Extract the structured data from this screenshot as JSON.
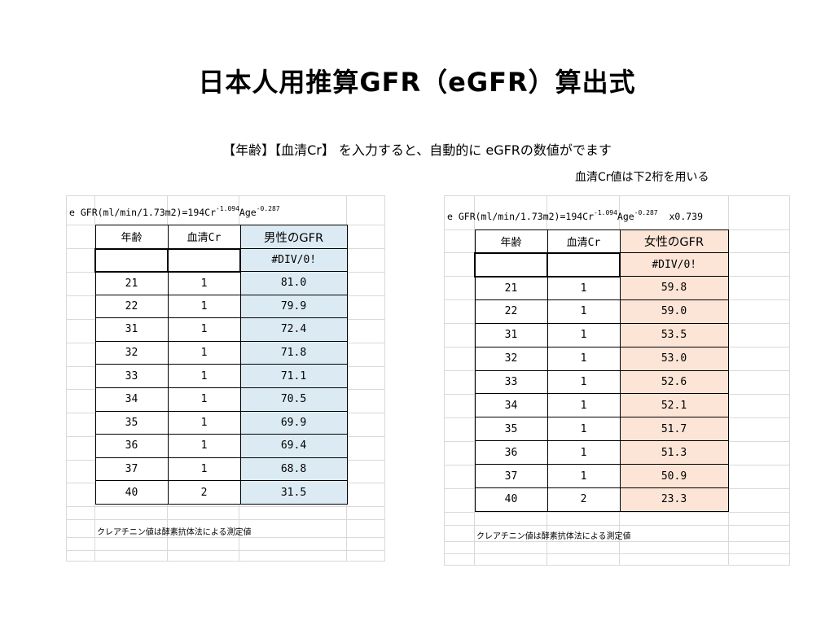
{
  "title": "日本人用推算GFR（eGFR）算出式",
  "subtitle": "【年齢】【血清Cr】 を入力すると、自動的に eGFRの数値がでます",
  "note": "血清Cr値は下2桁を用いる",
  "male": {
    "formula_base": "e GFR(ml/min/1.73m2)=194Cr",
    "formula_exp1": "-1.094",
    "formula_age": "Age",
    "formula_exp2": "-0.287",
    "formula_suffix": "",
    "headers": {
      "age": "年齢",
      "cr": "血清Cr",
      "gfr": "男性のGFR"
    },
    "input_result": "#DIV/0!",
    "rows": [
      {
        "age": "21",
        "cr": "1",
        "gfr": "81.0"
      },
      {
        "age": "22",
        "cr": "1",
        "gfr": "79.9"
      },
      {
        "age": "31",
        "cr": "1",
        "gfr": "72.4"
      },
      {
        "age": "32",
        "cr": "1",
        "gfr": "71.8"
      },
      {
        "age": "33",
        "cr": "1",
        "gfr": "71.1"
      },
      {
        "age": "34",
        "cr": "1",
        "gfr": "70.5"
      },
      {
        "age": "35",
        "cr": "1",
        "gfr": "69.9"
      },
      {
        "age": "36",
        "cr": "1",
        "gfr": "69.4"
      },
      {
        "age": "37",
        "cr": "1",
        "gfr": "68.8"
      },
      {
        "age": "40",
        "cr": "2",
        "gfr": "31.5"
      }
    ],
    "footnote": "クレアチニン値は酵素抗体法による測定値"
  },
  "female": {
    "formula_base": "e GFR(ml/min/1.73m2)=194Cr",
    "formula_exp1": "-1.094",
    "formula_age": "Age",
    "formula_exp2": "-0.287",
    "formula_suffix": "x0.739",
    "headers": {
      "age": "年齢",
      "cr": "血清Cr",
      "gfr": "女性のGFR"
    },
    "input_result": "#DIV/0!",
    "rows": [
      {
        "age": "21",
        "cr": "1",
        "gfr": "59.8"
      },
      {
        "age": "22",
        "cr": "1",
        "gfr": "59.0"
      },
      {
        "age": "31",
        "cr": "1",
        "gfr": "53.5"
      },
      {
        "age": "32",
        "cr": "1",
        "gfr": "53.0"
      },
      {
        "age": "33",
        "cr": "1",
        "gfr": "52.6"
      },
      {
        "age": "34",
        "cr": "1",
        "gfr": "52.1"
      },
      {
        "age": "35",
        "cr": "1",
        "gfr": "51.7"
      },
      {
        "age": "36",
        "cr": "1",
        "gfr": "51.3"
      },
      {
        "age": "37",
        "cr": "1",
        "gfr": "50.9"
      },
      {
        "age": "40",
        "cr": "2",
        "gfr": "23.3"
      }
    ],
    "footnote": "クレアチニン値は酵素抗体法による測定値"
  }
}
